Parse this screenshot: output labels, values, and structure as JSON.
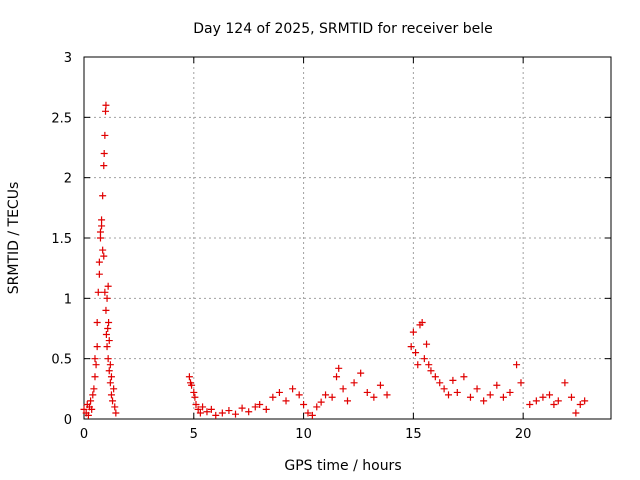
{
  "chart_data": {
    "type": "scatter",
    "title": "Day 124 of 2025, SRMTID for receiver bele",
    "xlabel": "GPS time / hours",
    "ylabel": "SRMTID / TECUs",
    "xlim": [
      0,
      24
    ],
    "ylim": [
      0,
      3
    ],
    "xticks": [
      "0",
      "5",
      "10",
      "15",
      "20"
    ],
    "yticks": [
      "0",
      "0.5",
      "1",
      "1.5",
      "2",
      "2.5",
      "3"
    ],
    "grid": true,
    "marker": "plus",
    "color": "#e00000",
    "series": [
      {
        "name": "SRMTID",
        "x": [
          0.0,
          0.1,
          0.15,
          0.2,
          0.25,
          0.3,
          0.35,
          0.4,
          0.45,
          0.5,
          0.5,
          0.55,
          0.6,
          0.6,
          0.65,
          0.7,
          0.7,
          0.75,
          0.75,
          0.8,
          0.8,
          0.85,
          0.85,
          0.9,
          0.9,
          0.92,
          0.95,
          0.95,
          0.98,
          1.0,
          1.0,
          1.02,
          1.05,
          1.05,
          1.08,
          1.1,
          1.1,
          1.12,
          1.15,
          1.15,
          1.2,
          1.2,
          1.25,
          1.25,
          1.3,
          1.35,
          1.4,
          1.45,
          4.8,
          4.85,
          4.9,
          5.0,
          5.05,
          5.1,
          5.2,
          5.3,
          5.4,
          5.6,
          5.8,
          6.0,
          6.3,
          6.6,
          6.9,
          7.2,
          7.5,
          7.8,
          8.0,
          8.3,
          8.6,
          8.9,
          9.2,
          9.5,
          9.8,
          10.0,
          10.2,
          10.4,
          10.6,
          10.8,
          11.0,
          11.3,
          11.5,
          11.6,
          11.8,
          12.0,
          12.3,
          12.6,
          12.9,
          13.2,
          13.5,
          13.8,
          14.9,
          15.0,
          15.1,
          15.2,
          15.3,
          15.4,
          15.5,
          15.6,
          15.7,
          15.8,
          16.0,
          16.2,
          16.4,
          16.6,
          16.8,
          17.0,
          17.3,
          17.6,
          17.9,
          18.2,
          18.5,
          18.8,
          19.1,
          19.4,
          19.7,
          19.9,
          20.3,
          20.6,
          20.9,
          21.2,
          21.4,
          21.6,
          21.9,
          22.2,
          22.4,
          22.6,
          22.8
        ],
        "y": [
          0.08,
          0.05,
          0.12,
          0.03,
          0.1,
          0.15,
          0.08,
          0.2,
          0.25,
          0.5,
          0.35,
          0.45,
          0.8,
          0.6,
          1.05,
          1.3,
          1.2,
          1.55,
          1.5,
          1.65,
          1.6,
          1.85,
          1.4,
          2.1,
          1.35,
          2.2,
          2.35,
          1.05,
          2.55,
          2.6,
          0.9,
          0.7,
          1.0,
          0.6,
          0.75,
          1.1,
          0.5,
          0.8,
          0.65,
          0.4,
          0.45,
          0.3,
          0.2,
          0.35,
          0.15,
          0.25,
          0.1,
          0.05,
          0.35,
          0.3,
          0.28,
          0.22,
          0.18,
          0.12,
          0.08,
          0.05,
          0.1,
          0.06,
          0.08,
          0.03,
          0.05,
          0.07,
          0.04,
          0.09,
          0.06,
          0.1,
          0.12,
          0.08,
          0.18,
          0.22,
          0.15,
          0.25,
          0.2,
          0.12,
          0.05,
          0.03,
          0.1,
          0.14,
          0.2,
          0.18,
          0.35,
          0.42,
          0.25,
          0.15,
          0.3,
          0.38,
          0.22,
          0.18,
          0.28,
          0.2,
          0.6,
          0.72,
          0.55,
          0.45,
          0.78,
          0.8,
          0.5,
          0.62,
          0.45,
          0.4,
          0.35,
          0.3,
          0.25,
          0.2,
          0.32,
          0.22,
          0.35,
          0.18,
          0.25,
          0.15,
          0.2,
          0.28,
          0.18,
          0.22,
          0.45,
          0.3,
          0.12,
          0.15,
          0.18,
          0.2,
          0.12,
          0.15,
          0.3,
          0.18,
          0.05,
          0.12,
          0.15
        ]
      }
    ]
  }
}
